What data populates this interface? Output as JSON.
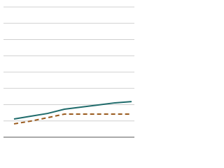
{
  "chart_data": {
    "type": "line",
    "categories": [
      null,
      null,
      null,
      null,
      null,
      null,
      null,
      null
    ],
    "series": [
      {
        "color": "#1f6b6b",
        "dash": false,
        "values": [
          1.12,
          1.29,
          1.46,
          1.72,
          1.85,
          1.98,
          2.11,
          2.19
        ]
      },
      {
        "color": "#9a5b1e",
        "dash": true,
        "values": [
          0.82,
          0.99,
          1.2,
          1.42,
          1.42,
          1.42,
          1.42,
          1.42
        ]
      }
    ],
    "ylim": [
      0,
      8
    ],
    "yticks": [
      0,
      1,
      2,
      3,
      4,
      5,
      6,
      7,
      8
    ],
    "grid": true
  }
}
